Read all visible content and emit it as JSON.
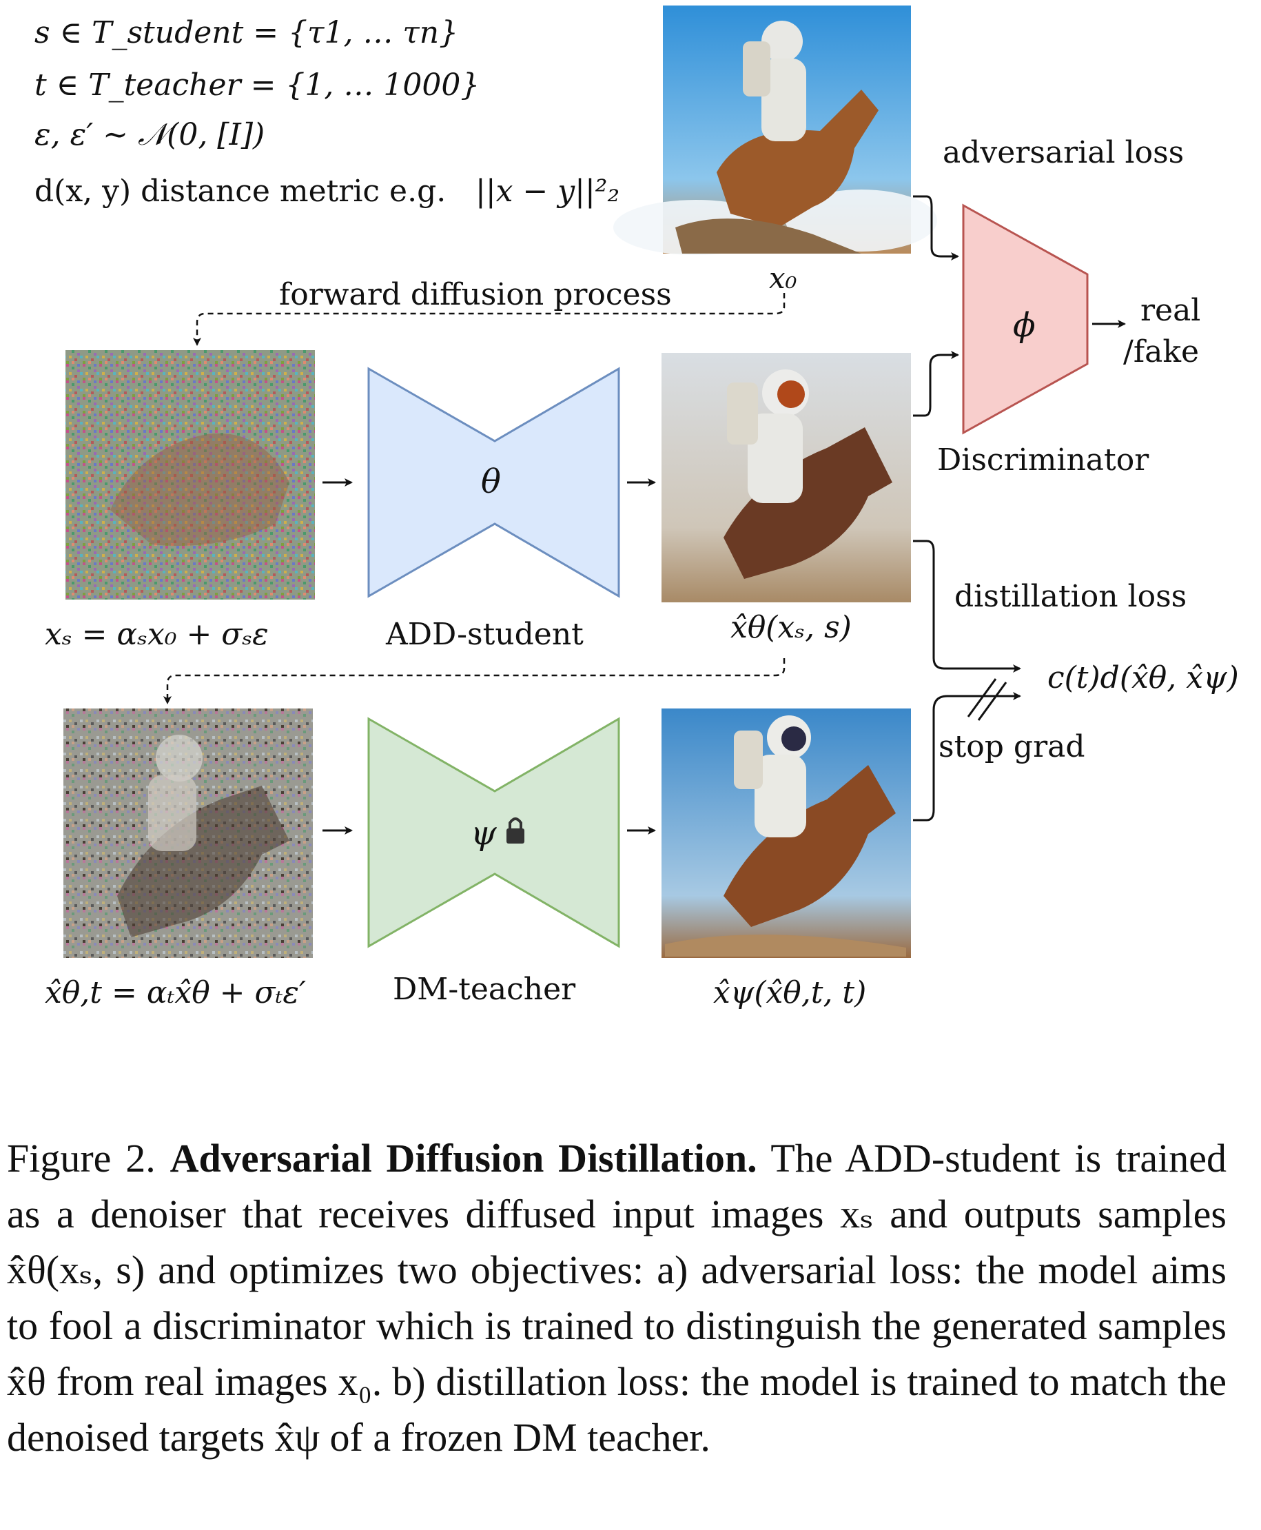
{
  "definitions": {
    "line1": "s ∈ T_student = {τ1, … τn}",
    "line2": "t ∈ T_teacher = {1, … 1000}",
    "line3": "ε, ε′ ∼ 𝒩(0, [I])",
    "line4_text": "d(x, y) distance metric e.g.",
    "line4_math": "||x − y||²₂"
  },
  "labels": {
    "forward_diffusion": "forward diffusion process",
    "adversarial_loss": "adversarial loss",
    "real_fake_1": "real",
    "real_fake_2": "/fake",
    "discriminator": "Discriminator",
    "distillation_loss": "distillation loss",
    "stop_grad": "stop grad",
    "add_student": "ADD-student",
    "dm_teacher": "DM-teacher",
    "phi": "ϕ",
    "theta": "θ",
    "psi": "ψ"
  },
  "math": {
    "x0": "x₀",
    "xs_eq": "xₛ = αₛx₀ + σₛε",
    "xhat_theta_s": "x̂θ(xₛ, s)",
    "xhat_theta_t_eq": "x̂θ,t = αₜx̂θ + σₜε′",
    "xhat_psi": "x̂ψ(x̂θ,t, t)",
    "loss": "c(t)d(x̂θ, x̂ψ)"
  },
  "images": {
    "x0": "astronaut riding horse (real image, sky background)",
    "xs": "noisy diffused input image",
    "student_output": "generated astronaut on horse (student sample)",
    "xhat_theta_t": "noisy re-diffused student sample",
    "teacher_output": "teacher denoised astronaut on horse"
  },
  "colors": {
    "student_fill": "#dae8fc",
    "student_stroke": "#6c8ebf",
    "teacher_fill": "#d5e8d4",
    "teacher_stroke": "#82b366",
    "disc_fill": "#f8cecc",
    "disc_stroke": "#b85450"
  },
  "caption": {
    "prefix": "Figure 2.",
    "bold": "Adversarial Diffusion Distillation.",
    "body": "The ADD-student is trained as a denoiser that receives diffused input images xₛ and outputs samples x̂θ(xₛ, s) and optimizes two objectives: a) adversarial loss: the model aims to fool a discriminator which is trained to distinguish the generated samples x̂θ from real images x₀. b) distillation loss: the model is trained to match the denoised targets x̂ψ of a frozen DM teacher."
  }
}
